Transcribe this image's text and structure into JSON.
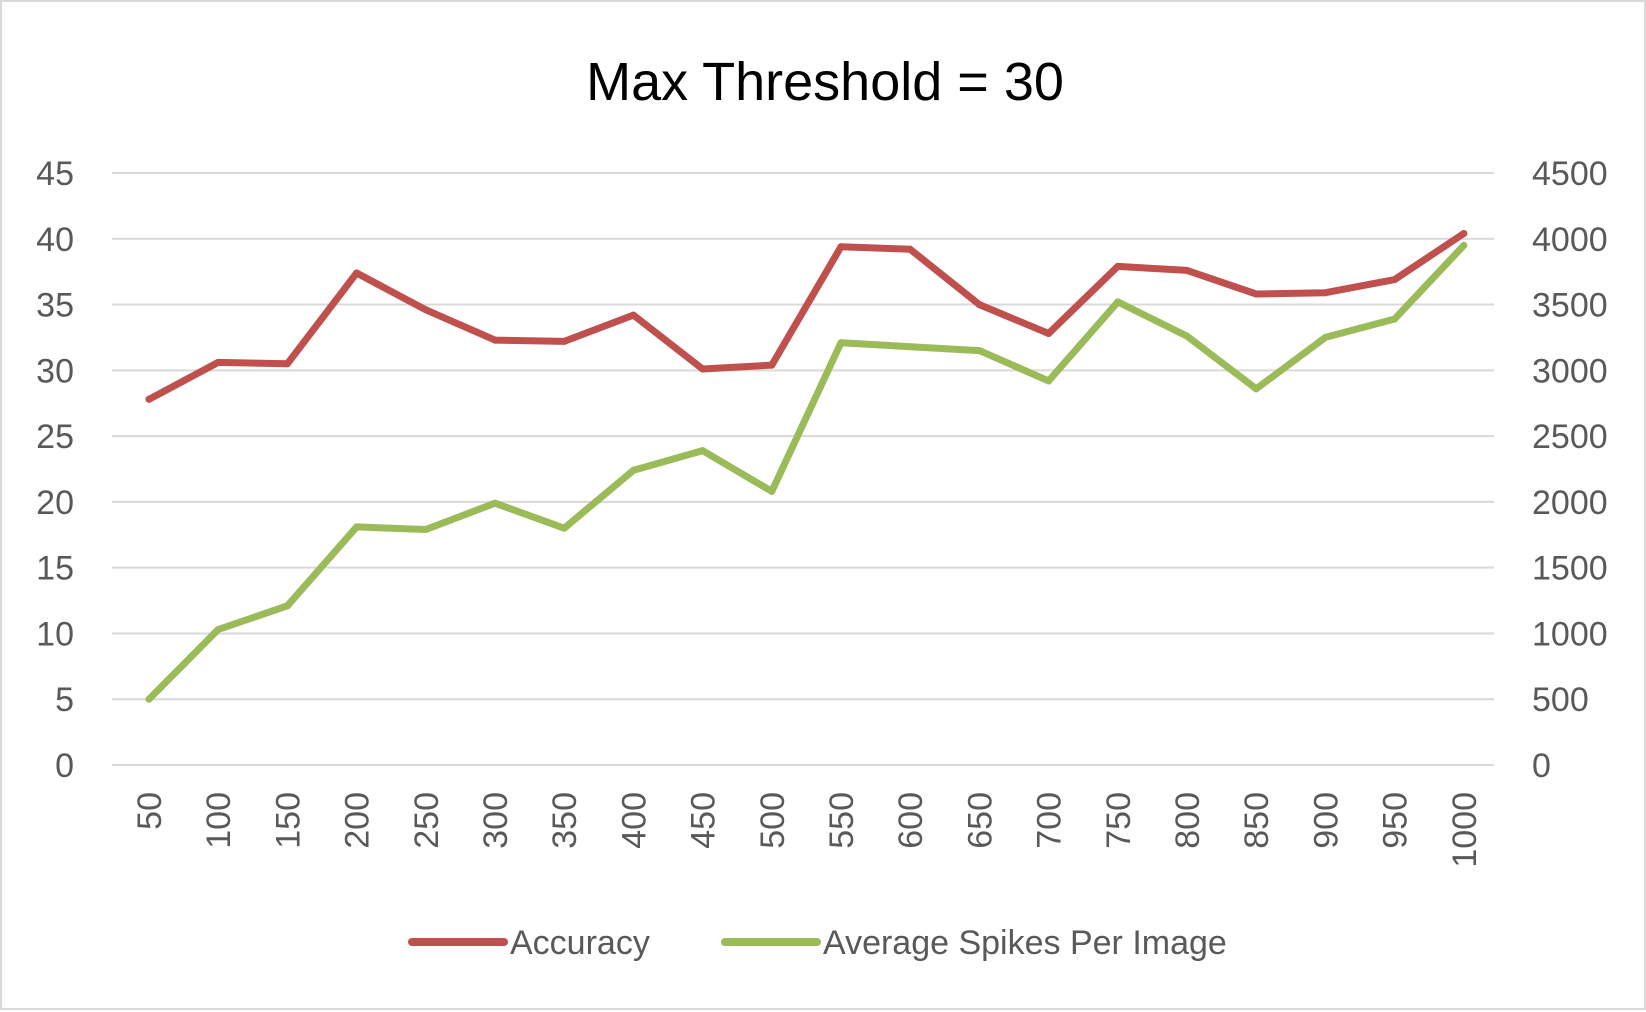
{
  "chart_data": {
    "type": "line",
    "title": "Max Threshold = 30",
    "xlabel": "",
    "ylabel": "",
    "y2label": "",
    "x": [
      "50",
      "100",
      "150",
      "200",
      "250",
      "300",
      "350",
      "400",
      "450",
      "500",
      "550",
      "600",
      "650",
      "700",
      "750",
      "800",
      "850",
      "900",
      "950",
      "1000"
    ],
    "ylim": [
      0,
      45
    ],
    "y_ticks": [
      "0",
      "5",
      "10",
      "15",
      "20",
      "25",
      "30",
      "35",
      "40",
      "45"
    ],
    "y2lim": [
      0,
      4500
    ],
    "y2_ticks": [
      "0",
      "500",
      "1000",
      "1500",
      "2000",
      "2500",
      "3000",
      "3500",
      "4000",
      "4500"
    ],
    "grid": true,
    "legend_position": "bottom",
    "series": [
      {
        "name": "Accuracy",
        "axis": "left",
        "color": "#c0504d",
        "values": [
          27.8,
          30.6,
          30.5,
          37.4,
          34.6,
          32.3,
          32.2,
          34.2,
          30.1,
          30.4,
          39.4,
          39.2,
          35.0,
          32.8,
          37.9,
          37.6,
          35.8,
          35.9,
          36.9,
          40.4
        ]
      },
      {
        "name": "Average Spikes Per Image",
        "axis": "right",
        "color": "#9bbb59",
        "values": [
          500,
          1030,
          1210,
          1810,
          1790,
          1990,
          1800,
          2240,
          2390,
          2080,
          3210,
          3180,
          3150,
          2920,
          3520,
          3260,
          2860,
          3250,
          3390,
          3950
        ]
      }
    ]
  }
}
